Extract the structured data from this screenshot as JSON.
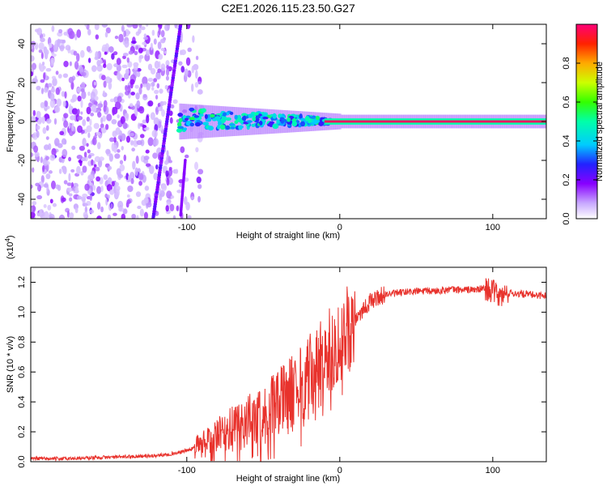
{
  "figure_title": "C2E1.2026.115.23.50.G27",
  "chart_data": [
    {
      "type": "heatmap",
      "name": "spectrogram",
      "title": "C2E1.2026.115.23.50.G27",
      "xlabel": "Height of straight line (km)",
      "ylabel": "Frequency (Hz)",
      "xlim": [
        -202,
        135
      ],
      "ylim": [
        -50,
        50
      ],
      "x_ticks": [
        -100,
        0,
        100
      ],
      "x_tick_labels": [
        "-100",
        "0",
        "100"
      ],
      "y_ticks": [
        -40,
        -20,
        0,
        20,
        40
      ],
      "y_tick_labels": [
        "-40",
        "-20",
        "0",
        "20",
        "40"
      ],
      "colorbar": {
        "label": "Normalized spectral amplitude",
        "range": [
          0,
          1
        ],
        "ticks": [
          0.0,
          0.2,
          0.4,
          0.6,
          0.8
        ],
        "tick_labels": [
          "0.0",
          "0.2",
          "0.4",
          "0.6",
          "0.8"
        ]
      },
      "features": {
        "carrier_line": {
          "x_start": -10,
          "x_end": 135,
          "frequency": 0,
          "amplitude": 0.98
        },
        "diagonal_stripe": {
          "x_at_bottom": -122,
          "x_at_top": -104,
          "amplitude": 0.2
        },
        "noise_region": {
          "x_start": -202,
          "x_end": -90,
          "amplitude": 0.12
        }
      }
    },
    {
      "type": "line",
      "name": "snr",
      "xlabel": "Height of straight line (km)",
      "ylabel": "SNR (10 * v/v)",
      "scale_note": "(x10",
      "scale_exponent": "4",
      "scale_close": ")",
      "xlim": [
        -202,
        135
      ],
      "ylim": [
        0,
        1.3
      ],
      "x_ticks": [
        -100,
        0,
        100
      ],
      "x_tick_labels": [
        "-100",
        "0",
        "100"
      ],
      "y_ticks": [
        0.0,
        0.2,
        0.4,
        0.6,
        0.8,
        1.0,
        1.2
      ],
      "y_tick_labels": [
        "0.0",
        "0.2",
        "0.4",
        "0.6",
        "0.8",
        "1.0",
        "1.2"
      ],
      "color": "#e8322c",
      "series": [
        {
          "name": "SNR",
          "x": [
            -202,
            -180,
            -150,
            -120,
            -105,
            -95,
            -85,
            -78,
            -70,
            -62,
            -55,
            -48,
            -42,
            -36,
            -30,
            -25,
            -20,
            -15,
            -10,
            -5,
            0,
            5,
            10,
            15,
            20,
            25,
            30,
            40,
            50,
            60,
            70,
            80,
            90,
            95,
            100,
            105,
            110,
            120,
            135
          ],
          "values": [
            0.02,
            0.02,
            0.03,
            0.04,
            0.06,
            0.09,
            0.13,
            0.18,
            0.22,
            0.26,
            0.29,
            0.33,
            0.37,
            0.42,
            0.47,
            0.5,
            0.55,
            0.6,
            0.68,
            0.75,
            0.82,
            0.88,
            0.95,
            1.02,
            1.07,
            1.1,
            1.12,
            1.13,
            1.14,
            1.14,
            1.15,
            1.15,
            1.15,
            1.16,
            1.14,
            1.1,
            1.13,
            1.12,
            1.11
          ]
        }
      ]
    }
  ]
}
